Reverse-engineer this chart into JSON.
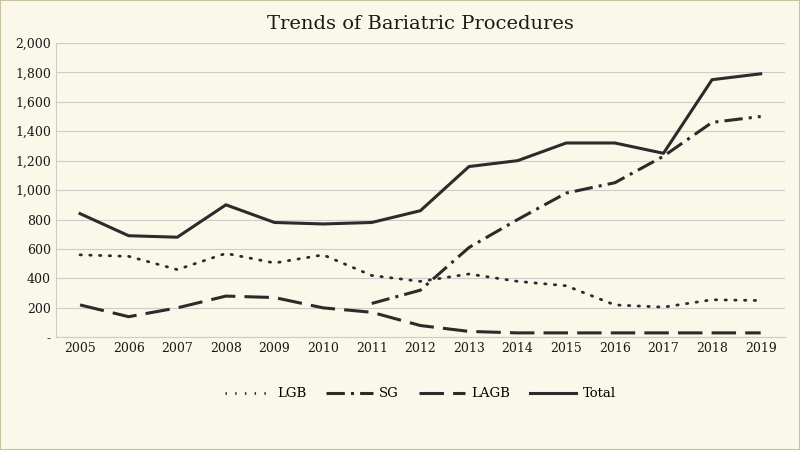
{
  "title": "Trends of Bariatric Procedures",
  "years": [
    2005,
    2006,
    2007,
    2008,
    2009,
    2010,
    2011,
    2012,
    2013,
    2014,
    2015,
    2016,
    2017,
    2018,
    2019
  ],
  "LGB": [
    560,
    550,
    460,
    570,
    505,
    560,
    420,
    380,
    430,
    380,
    350,
    220,
    205,
    255,
    250
  ],
  "SG": [
    null,
    null,
    null,
    null,
    null,
    null,
    230,
    320,
    610,
    800,
    980,
    1050,
    1230,
    1460,
    1500
  ],
  "LAGB": [
    220,
    140,
    200,
    280,
    270,
    200,
    170,
    80,
    40,
    30,
    30,
    30,
    30,
    30,
    30
  ],
  "Total": [
    840,
    690,
    680,
    900,
    780,
    770,
    780,
    860,
    1160,
    1200,
    1320,
    1320,
    1250,
    1750,
    1790
  ],
  "ylim_min": 0,
  "ylim_max": 2000,
  "yticks": [
    0,
    200,
    400,
    600,
    800,
    1000,
    1200,
    1400,
    1600,
    1800,
    2000
  ],
  "ytick_labels": [
    "-",
    "200",
    "400",
    "600",
    "800",
    "1,000",
    "1,200",
    "1,400",
    "1,600",
    "1,800",
    "2,000"
  ],
  "background_color": "#faf8e8",
  "border_color": "#c8c0a0",
  "line_color": "#2b2b2b",
  "grid_color": "#cccccc",
  "legend_items": [
    "LGB",
    "SG",
    "LAGB",
    "Total"
  ]
}
